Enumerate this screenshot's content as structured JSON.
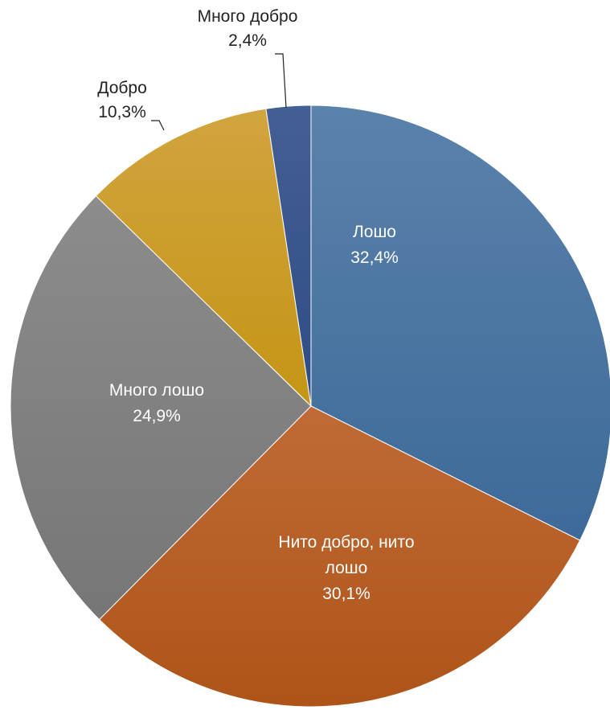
{
  "chart_data": {
    "type": "pie",
    "start_angle_deg": 0,
    "direction": "clockwise",
    "slices": [
      {
        "label": "Лошо",
        "value": 32.4,
        "value_label": "32,4%",
        "color": "#3D6A99",
        "color_light": "#5A82AB",
        "label_position": "inside"
      },
      {
        "label": "Нито добро, нито лошо",
        "label_lines": [
          "Нито добро, нито",
          "лошо"
        ],
        "value": 30.1,
        "value_label": "30,1%",
        "color": "#AD5418",
        "color_light": "#C06A36",
        "label_position": "inside"
      },
      {
        "label": "Много лошо",
        "value": 24.9,
        "value_label": "24,9%",
        "color": "#767676",
        "color_light": "#8C8C8C",
        "label_position": "inside"
      },
      {
        "label": "Добро",
        "value": 10.3,
        "value_label": "10,3%",
        "color": "#C59514",
        "color_light": "#D1A43F",
        "label_position": "outside"
      },
      {
        "label": "Много добро",
        "value": 2.4,
        "value_label": "2,4%",
        "color": "#2E4C86",
        "color_light": "#445F94",
        "label_position": "outside"
      }
    ]
  }
}
